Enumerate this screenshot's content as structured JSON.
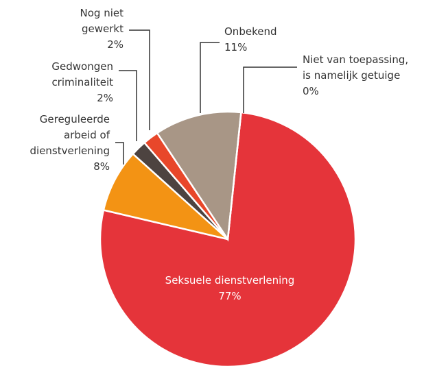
{
  "chart_data": {
    "type": "pie",
    "categories": [
      "Seksuele dienstverlening",
      "Gereguleerde arbeid of dienstverlening",
      "Gedwongen criminaliteit",
      "Nog niet gewerkt",
      "Onbekend",
      "Niet van toepassing, is namelijk getuige"
    ],
    "values": [
      77,
      8,
      2,
      2,
      11,
      0
    ],
    "value_labels": [
      "77%",
      "8%",
      "2%",
      "2%",
      "11%",
      "0%"
    ],
    "colors": [
      "#e5343a",
      "#f39314",
      "#4d4340",
      "#e8472a",
      "#a89686",
      "#a89686"
    ]
  }
}
